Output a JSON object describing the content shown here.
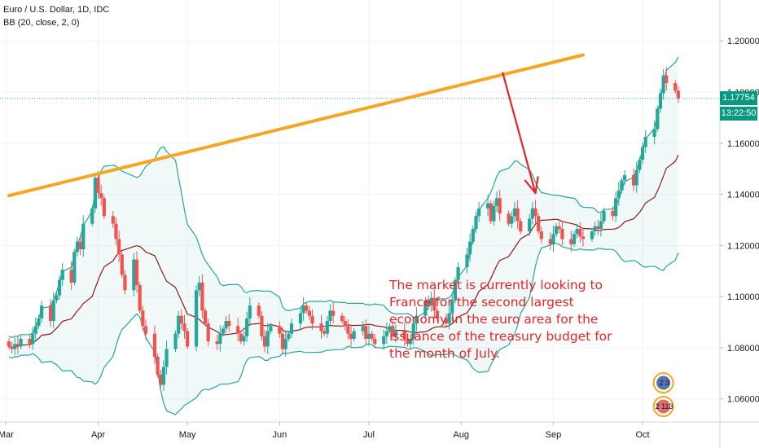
{
  "legend": {
    "symbol": "Euro / U.S. Dollar, 1D, IDC",
    "indicator": "BB (20, close, 2, 0)"
  },
  "price_tags": {
    "last_price": "1.17754",
    "countdown": "13:22:50",
    "tag_color": "#089981"
  },
  "annotation": {
    "text": "The market is currently looking to France for the second largest economy in the euro area for the issuance of the treasury budget for the month of July.",
    "color": "#e5242b"
  },
  "event_markers": [
    {
      "label": "2 3",
      "icon": "calendar-event-icon"
    },
    {
      "label": "2 113",
      "icon": "us-flag-icon"
    }
  ],
  "chart_data": {
    "type": "candlestick",
    "title": "",
    "x_ticks": [
      "Mar",
      "Apr",
      "May",
      "Jun",
      "Jul",
      "Aug",
      "Sep",
      "Oct"
    ],
    "y_ticks": [
      "1.06000",
      "1.08000",
      "1.10000",
      "1.12000",
      "1.14000",
      "1.16000",
      "1.18000",
      "1.20000"
    ],
    "ylim": [
      1.051,
      1.216
    ],
    "x_range_days": [
      -2,
      240
    ],
    "last_price": 1.17754,
    "colors": {
      "up": "#26a69a",
      "down": "#ef5350",
      "band": "#26a69a",
      "basis": "#8b1a1a",
      "trendline": "#f5a623",
      "arrow": "#e5242b"
    },
    "trendline": {
      "from": [
        1,
        1.1395
      ],
      "to": [
        194,
        1.1945
      ]
    },
    "arrow": {
      "from": [
        167,
        1.1875
      ],
      "to": [
        178,
        1.1405
      ]
    },
    "candle_closes": [
      1.0805,
      1.0795,
      1.0815,
      1.0805,
      1.0835,
      1.0815,
      1.0855,
      1.0885,
      1.0915,
      1.0965,
      1.0905,
      1.0985,
      1.1005,
      1.1065,
      1.1105,
      1.1055,
      1.1175,
      1.1215,
      1.1185,
      1.1285,
      1.1345,
      1.1465,
      1.1405,
      1.1385,
      1.1315,
      1.1285,
      1.1225,
      1.1165,
      1.1085,
      1.1025,
      1.1145,
      1.1045,
      1.0945,
      1.0885,
      1.0855,
      1.0765,
      1.0695,
      1.0655,
      1.0725,
      1.0795,
      1.0855,
      1.0925,
      1.0895,
      1.0865,
      1.0805,
      1.1025,
      1.1055,
      1.0945,
      1.0895,
      1.0825,
      1.0815,
      1.0855,
      1.0875,
      1.0905,
      1.0885,
      1.0855,
      1.0825,
      1.0845,
      1.0915,
      1.0965,
      1.0925,
      1.0845,
      1.0805,
      1.0865,
      1.0885,
      1.0855,
      1.0795,
      1.0835,
      1.0855,
      1.0895,
      1.0935,
      1.0965,
      1.0945,
      1.0925,
      1.0895,
      1.0865,
      1.0855,
      1.0905,
      1.0945,
      1.0925,
      1.0905,
      1.0885,
      1.0855,
      1.0835,
      1.0865,
      1.0885,
      1.0835,
      1.0855,
      1.0835,
      1.0815,
      1.0845,
      1.0865,
      1.0885,
      1.0845,
      1.0865,
      1.0835,
      1.0815,
      1.0835,
      1.0895,
      1.0925,
      1.0985,
      1.0965,
      1.0995,
      1.0945,
      1.0915,
      1.0895,
      1.0935,
      1.0985,
      1.1065,
      1.1115,
      1.1165,
      1.1215,
      1.1265,
      1.1315,
      1.1345,
      1.1365,
      1.1295,
      1.1355,
      1.1385,
      1.1325,
      1.1285,
      1.1315,
      1.1345,
      1.1295,
      1.1255,
      1.1305,
      1.1345,
      1.1315,
      1.1255,
      1.1225,
      1.1205,
      1.1245,
      1.1275,
      1.1265,
      1.1225,
      1.1205,
      1.1245,
      1.1265,
      1.1235,
      1.1225,
      1.1255,
      1.1275,
      1.1265,
      1.1295,
      1.1335,
      1.1315,
      1.1385,
      1.1415,
      1.1455,
      1.1475,
      1.1435,
      1.1495,
      1.1535,
      1.1585,
      1.1625,
      1.1655,
      1.1735,
      1.1795,
      1.1865,
      1.1835,
      1.1805,
      1.1775
    ]
  }
}
